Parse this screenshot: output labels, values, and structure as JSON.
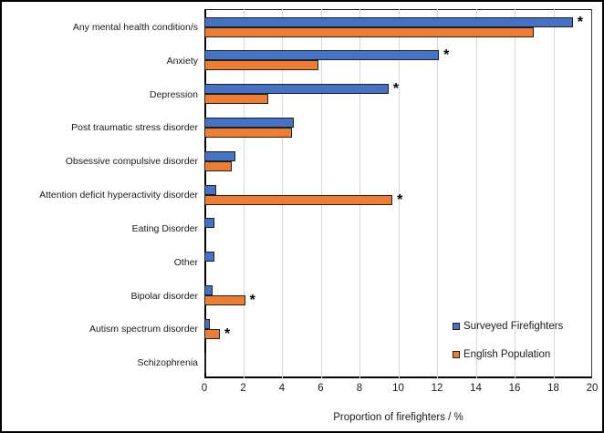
{
  "chart_data": {
    "type": "bar",
    "orientation": "horizontal",
    "title": "",
    "xlabel": "Proportion of firefighters / %",
    "ylabel": "",
    "xlim": [
      0,
      20
    ],
    "xticks": [
      0,
      2,
      4,
      6,
      8,
      10,
      12,
      14,
      16,
      18,
      20
    ],
    "grid": true,
    "legend_position": "bottom-right",
    "significance_marker": "*",
    "categories": [
      "Any mental health condition/s",
      "Anxiety",
      "Depression",
      "Post traumatic stress disorder",
      "Obsessive compulsive disorder",
      "Attention deficit  hyperactivity disorder",
      "Eating Disorder",
      "Other",
      "Bipolar disorder",
      "Autism spectrum disorder",
      "Schizophrenia"
    ],
    "series": [
      {
        "name": "Surveyed Firefighters",
        "color": "#4472C4",
        "values": [
          19.0,
          12.1,
          9.5,
          4.6,
          1.6,
          0.6,
          0.5,
          0.5,
          0.4,
          0.3,
          0.1
        ],
        "significant": [
          true,
          true,
          true,
          false,
          false,
          false,
          false,
          false,
          false,
          false,
          false
        ]
      },
      {
        "name": "English Population",
        "color": "#ED7D31",
        "values": [
          17.0,
          5.9,
          3.3,
          4.5,
          1.4,
          9.7,
          0,
          0,
          2.1,
          0.8,
          0.05
        ],
        "significant": [
          false,
          false,
          false,
          false,
          false,
          true,
          false,
          false,
          true,
          true,
          false
        ]
      }
    ]
  },
  "legend": {
    "items": [
      {
        "label": "Surveyed Firefighters",
        "color": "#4472C4"
      },
      {
        "label": "English Population",
        "color": "#ED7D31"
      }
    ]
  },
  "colors": {
    "bar_border": "#1f1f1f",
    "grid": "#d9d9d9",
    "axis": "#000000",
    "text": "#1a1a1a",
    "background": "#ffffff"
  }
}
